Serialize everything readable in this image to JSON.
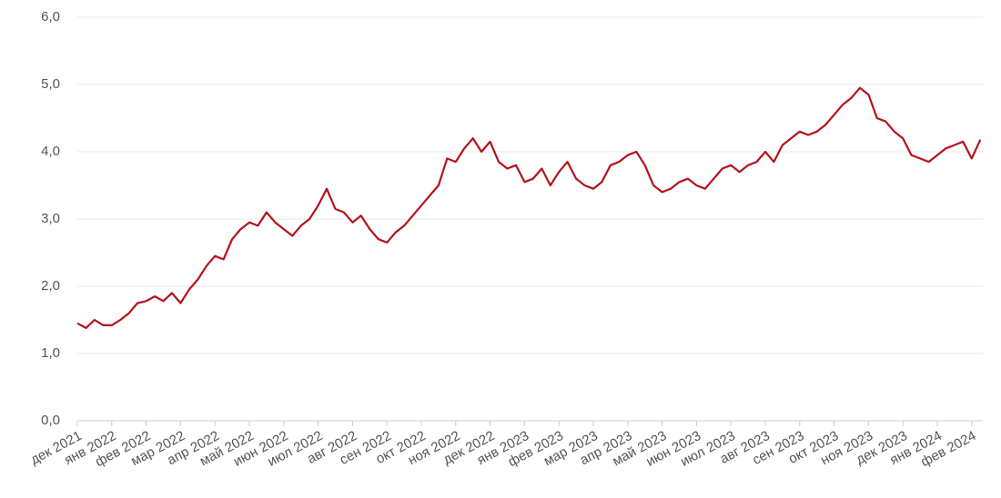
{
  "chart_data": {
    "type": "line",
    "categories": [
      "дек 2021",
      null,
      null,
      null,
      "янв 2022",
      null,
      null,
      null,
      "фев 2022",
      null,
      null,
      null,
      "мар 2022",
      null,
      null,
      null,
      "апр 2022",
      null,
      null,
      null,
      "май 2022",
      null,
      null,
      null,
      "июн 2022",
      null,
      null,
      null,
      "июл 2022",
      null,
      null,
      null,
      "авг 2022",
      null,
      null,
      null,
      "сен 2022",
      null,
      null,
      null,
      "окт 2022",
      null,
      null,
      null,
      "ноя 2022",
      null,
      null,
      null,
      "дек 2022",
      null,
      null,
      null,
      "янв 2023",
      null,
      null,
      null,
      "фев 2023",
      null,
      null,
      null,
      "мар 2023",
      null,
      null,
      null,
      "апр 2023",
      null,
      null,
      null,
      "май 2023",
      null,
      null,
      null,
      "июн 2023",
      null,
      null,
      null,
      "июл 2023",
      null,
      null,
      null,
      "авг 2023",
      null,
      null,
      null,
      "сен 2023",
      null,
      null,
      null,
      "окт 2023",
      null,
      null,
      null,
      "ноя 2023",
      null,
      null,
      null,
      "дек 2023",
      null,
      null,
      null,
      "янв 2024",
      null,
      null,
      null,
      "фев 2024",
      null
    ],
    "values": [
      1.45,
      1.38,
      1.5,
      1.42,
      1.42,
      1.5,
      1.6,
      1.75,
      1.78,
      1.85,
      1.78,
      1.9,
      1.75,
      1.95,
      2.1,
      2.3,
      2.45,
      2.4,
      2.7,
      2.85,
      2.95,
      2.9,
      3.1,
      2.95,
      2.85,
      2.75,
      2.9,
      3.0,
      3.2,
      3.45,
      3.15,
      3.1,
      2.95,
      3.05,
      2.85,
      2.7,
      2.65,
      2.8,
      2.9,
      3.05,
      3.2,
      3.35,
      3.5,
      3.9,
      3.85,
      4.05,
      4.2,
      4.0,
      4.15,
      3.85,
      3.75,
      3.8,
      3.55,
      3.6,
      3.75,
      3.5,
      3.7,
      3.85,
      3.6,
      3.5,
      3.45,
      3.55,
      3.8,
      3.85,
      3.95,
      4.0,
      3.8,
      3.5,
      3.4,
      3.45,
      3.55,
      3.6,
      3.5,
      3.45,
      3.6,
      3.75,
      3.8,
      3.7,
      3.8,
      3.85,
      4.0,
      3.85,
      4.1,
      4.2,
      4.3,
      4.25,
      4.3,
      4.4,
      4.55,
      4.7,
      4.8,
      4.95,
      4.85,
      4.5,
      4.45,
      4.3,
      4.2,
      3.95,
      3.9,
      3.85,
      3.95,
      4.05,
      4.1,
      4.15,
      3.9,
      4.18
    ],
    "color": "#b5121b",
    "ylim": [
      0,
      6
    ],
    "yticks": [
      {
        "value": 0,
        "label": "0,0"
      },
      {
        "value": 1,
        "label": "1,0"
      },
      {
        "value": 2,
        "label": "2,0"
      },
      {
        "value": 3,
        "label": "3,0"
      },
      {
        "value": 4,
        "label": "4,0"
      },
      {
        "value": 5,
        "label": "5,0"
      },
      {
        "value": 6,
        "label": "6,0"
      }
    ],
    "grid": true
  }
}
